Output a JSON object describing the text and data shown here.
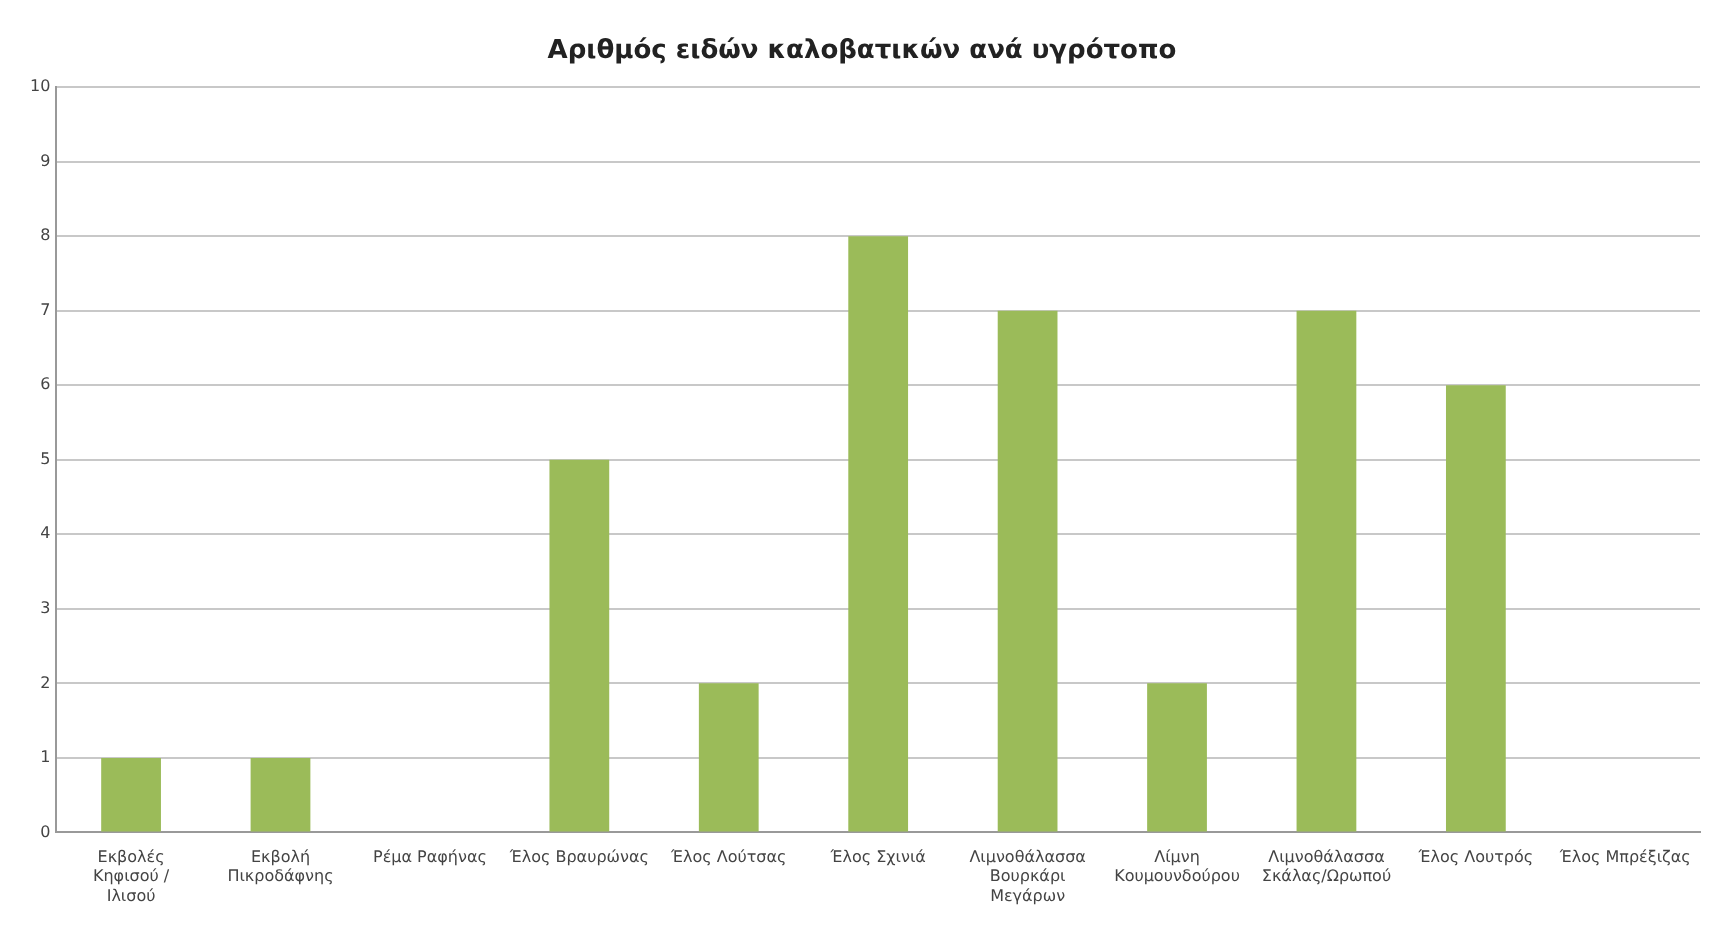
{
  "chart_data": {
    "type": "bar",
    "title": "Αριθμός ειδών καλοβατικών ανά υγρότοπο",
    "categories": [
      "Εκβολές Κηφισού / Ιλισού",
      "Εκβολή Πικροδάφνης",
      "Ρέμα Ραφήνας",
      "Έλος Βραυρώνας",
      "Έλος Λούτσας",
      "Έλος Σχινιά",
      "Λιμνοθάλασσα Βουρκάρι Μεγάρων",
      "Λίμνη Κουμουνδούρου",
      "Λιμνοθάλασσα Σκάλας/Ωρωπού",
      "Έλος Λουτρός",
      "Έλος Μπρέξιζας"
    ],
    "values": [
      1,
      1,
      0,
      5,
      2,
      8,
      7,
      2,
      7,
      6,
      0
    ],
    "color": "#9bbb59",
    "ylim": [
      0,
      10
    ],
    "yticks": [
      0,
      1,
      2,
      3,
      4,
      5,
      6,
      7,
      8,
      9,
      10
    ],
    "grid": "y"
  }
}
